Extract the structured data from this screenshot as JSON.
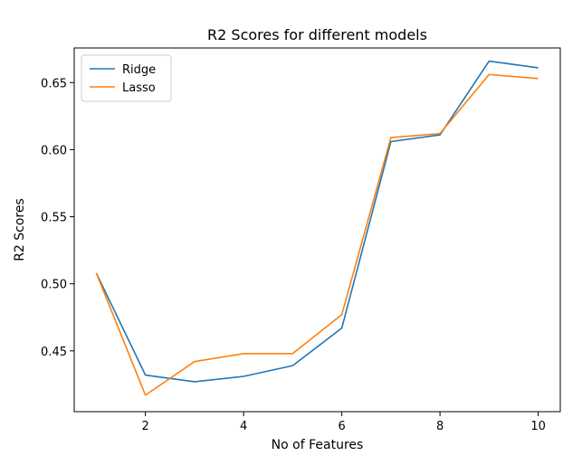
{
  "chart_data": {
    "type": "line",
    "title": "R2 Scores for different models",
    "xlabel": "No of Features",
    "ylabel": "R2 Scores",
    "x": [
      1,
      2,
      3,
      4,
      5,
      6,
      7,
      8,
      9,
      10
    ],
    "xlim": [
      0.55,
      10.45
    ],
    "ylim": [
      0.4047,
      0.6758
    ],
    "xticks": [
      2,
      4,
      6,
      8,
      10
    ],
    "yticks": [
      0.45,
      0.5,
      0.55,
      0.6,
      0.65
    ],
    "ytick_labels": [
      "0.45",
      "0.50",
      "0.55",
      "0.60",
      "0.65"
    ],
    "grid": false,
    "legend_position": "top-left",
    "series": [
      {
        "name": "Ridge",
        "color": "#1f77b4",
        "values": [
          0.508,
          0.432,
          0.427,
          0.431,
          0.439,
          0.467,
          0.606,
          0.611,
          0.666,
          0.661
        ]
      },
      {
        "name": "Lasso",
        "color": "#ff7f0e",
        "values": [
          0.508,
          0.417,
          0.442,
          0.448,
          0.448,
          0.477,
          0.609,
          0.612,
          0.656,
          0.653
        ]
      }
    ]
  }
}
